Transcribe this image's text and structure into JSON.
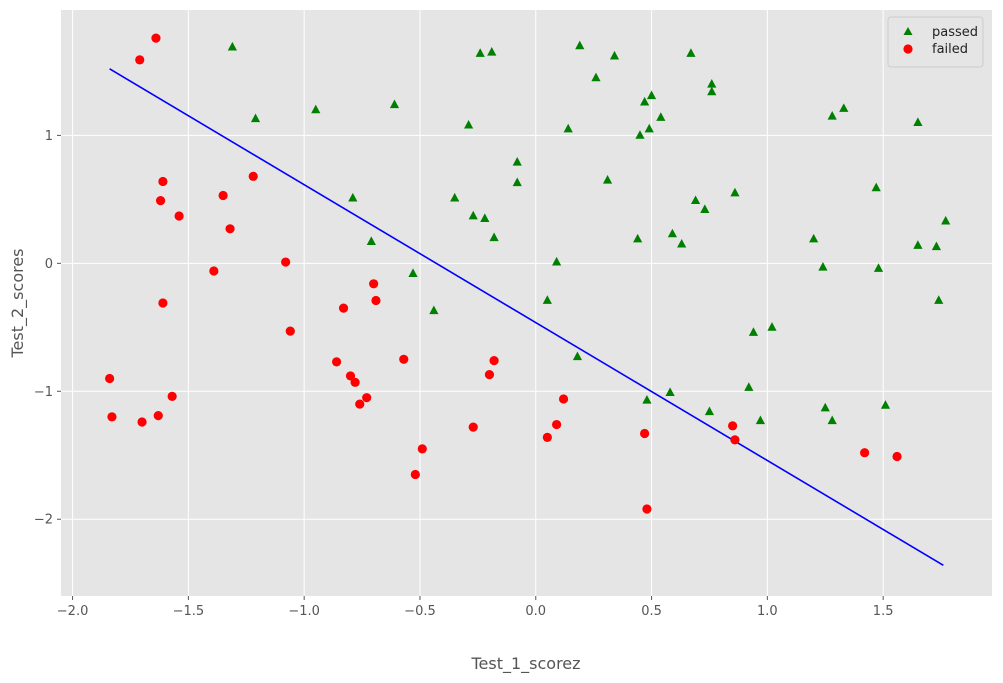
{
  "chart_data": {
    "type": "scatter",
    "xlabel": "Test_1_scorez",
    "ylabel": "Test_2_scores",
    "xlim": [
      -2.05,
      1.97
    ],
    "ylim": [
      -2.6,
      1.98
    ],
    "xticks": [
      -2.0,
      -1.5,
      -1.0,
      -0.5,
      0.0,
      0.5,
      1.0,
      1.5
    ],
    "xtick_labels": [
      "−2.0",
      "−1.5",
      "−1.0",
      "−0.5",
      "0.0",
      "0.5",
      "1.0",
      "1.5"
    ],
    "yticks": [
      -2,
      -1,
      0,
      1
    ],
    "ytick_labels": [
      "−2",
      "−1",
      "0",
      "1"
    ],
    "grid": true,
    "legend_position": "top-right",
    "colors": {
      "background": "#e5e5e5",
      "grid": "#ffffff",
      "passed": "#008000",
      "failed": "#ff0000",
      "boundary": "#0000ff"
    },
    "series": [
      {
        "name": "passed",
        "marker": "triangle",
        "color": "#008000",
        "points": [
          [
            -1.31,
            1.69
          ],
          [
            -1.21,
            1.13
          ],
          [
            -0.95,
            1.2
          ],
          [
            -0.61,
            1.24
          ],
          [
            -0.79,
            0.51
          ],
          [
            -0.71,
            0.17
          ],
          [
            -0.53,
            -0.08
          ],
          [
            -0.44,
            -0.37
          ],
          [
            -0.35,
            0.51
          ],
          [
            -0.29,
            1.08
          ],
          [
            -0.27,
            0.37
          ],
          [
            -0.24,
            1.64
          ],
          [
            -0.22,
            0.35
          ],
          [
            -0.19,
            1.65
          ],
          [
            -0.18,
            0.2
          ],
          [
            -0.08,
            0.79
          ],
          [
            -0.08,
            0.63
          ],
          [
            0.05,
            -0.29
          ],
          [
            0.09,
            0.01
          ],
          [
            0.14,
            1.05
          ],
          [
            0.18,
            -0.73
          ],
          [
            0.19,
            1.7
          ],
          [
            0.26,
            1.45
          ],
          [
            0.31,
            0.65
          ],
          [
            0.34,
            1.62
          ],
          [
            0.44,
            0.19
          ],
          [
            0.45,
            1.0
          ],
          [
            0.47,
            1.26
          ],
          [
            0.49,
            1.05
          ],
          [
            0.5,
            1.31
          ],
          [
            0.48,
            -1.07
          ],
          [
            0.54,
            1.14
          ],
          [
            0.58,
            -1.01
          ],
          [
            0.59,
            0.23
          ],
          [
            0.63,
            0.15
          ],
          [
            0.67,
            1.64
          ],
          [
            0.69,
            0.49
          ],
          [
            0.73,
            0.42
          ],
          [
            0.75,
            -1.16
          ],
          [
            0.76,
            1.4
          ],
          [
            0.76,
            1.34
          ],
          [
            0.86,
            0.55
          ],
          [
            0.92,
            -0.97
          ],
          [
            0.94,
            -0.54
          ],
          [
            0.97,
            -1.23
          ],
          [
            1.02,
            -0.5
          ],
          [
            1.2,
            0.19
          ],
          [
            1.24,
            -0.03
          ],
          [
            1.25,
            -1.13
          ],
          [
            1.28,
            1.15
          ],
          [
            1.28,
            -1.23
          ],
          [
            1.33,
            1.21
          ],
          [
            1.47,
            0.59
          ],
          [
            1.48,
            -0.04
          ],
          [
            1.51,
            -1.11
          ],
          [
            1.65,
            1.1
          ],
          [
            1.65,
            0.14
          ],
          [
            1.73,
            0.13
          ],
          [
            1.74,
            -0.29
          ],
          [
            1.77,
            0.33
          ]
        ]
      },
      {
        "name": "failed",
        "marker": "circle",
        "color": "#ff0000",
        "points": [
          [
            -1.64,
            1.76
          ],
          [
            -1.71,
            1.59
          ],
          [
            -1.61,
            0.64
          ],
          [
            -1.62,
            0.49
          ],
          [
            -1.54,
            0.37
          ],
          [
            -1.35,
            0.53
          ],
          [
            -1.32,
            0.27
          ],
          [
            -1.22,
            0.68
          ],
          [
            -1.39,
            -0.06
          ],
          [
            -1.61,
            -0.31
          ],
          [
            -1.84,
            -0.9
          ],
          [
            -1.83,
            -1.2
          ],
          [
            -1.7,
            -1.24
          ],
          [
            -1.63,
            -1.19
          ],
          [
            -1.57,
            -1.04
          ],
          [
            -1.08,
            0.01
          ],
          [
            -1.06,
            -0.53
          ],
          [
            -0.83,
            -0.35
          ],
          [
            -0.7,
            -0.16
          ],
          [
            -0.69,
            -0.29
          ],
          [
            -0.86,
            -0.77
          ],
          [
            -0.8,
            -0.88
          ],
          [
            -0.78,
            -0.93
          ],
          [
            -0.76,
            -1.1
          ],
          [
            -0.73,
            -1.05
          ],
          [
            -0.57,
            -0.75
          ],
          [
            -0.52,
            -1.65
          ],
          [
            -0.49,
            -1.45
          ],
          [
            -0.27,
            -1.28
          ],
          [
            -0.2,
            -0.87
          ],
          [
            -0.18,
            -0.76
          ],
          [
            0.05,
            -1.36
          ],
          [
            0.09,
            -1.26
          ],
          [
            0.12,
            -1.06
          ],
          [
            0.47,
            -1.33
          ],
          [
            0.48,
            -1.92
          ],
          [
            0.85,
            -1.27
          ],
          [
            0.86,
            -1.38
          ],
          [
            1.42,
            -1.48
          ],
          [
            1.56,
            -1.51
          ]
        ]
      }
    ],
    "boundary_line": [
      [
        -1.84,
        1.52
      ],
      [
        1.76,
        -2.36
      ]
    ]
  }
}
